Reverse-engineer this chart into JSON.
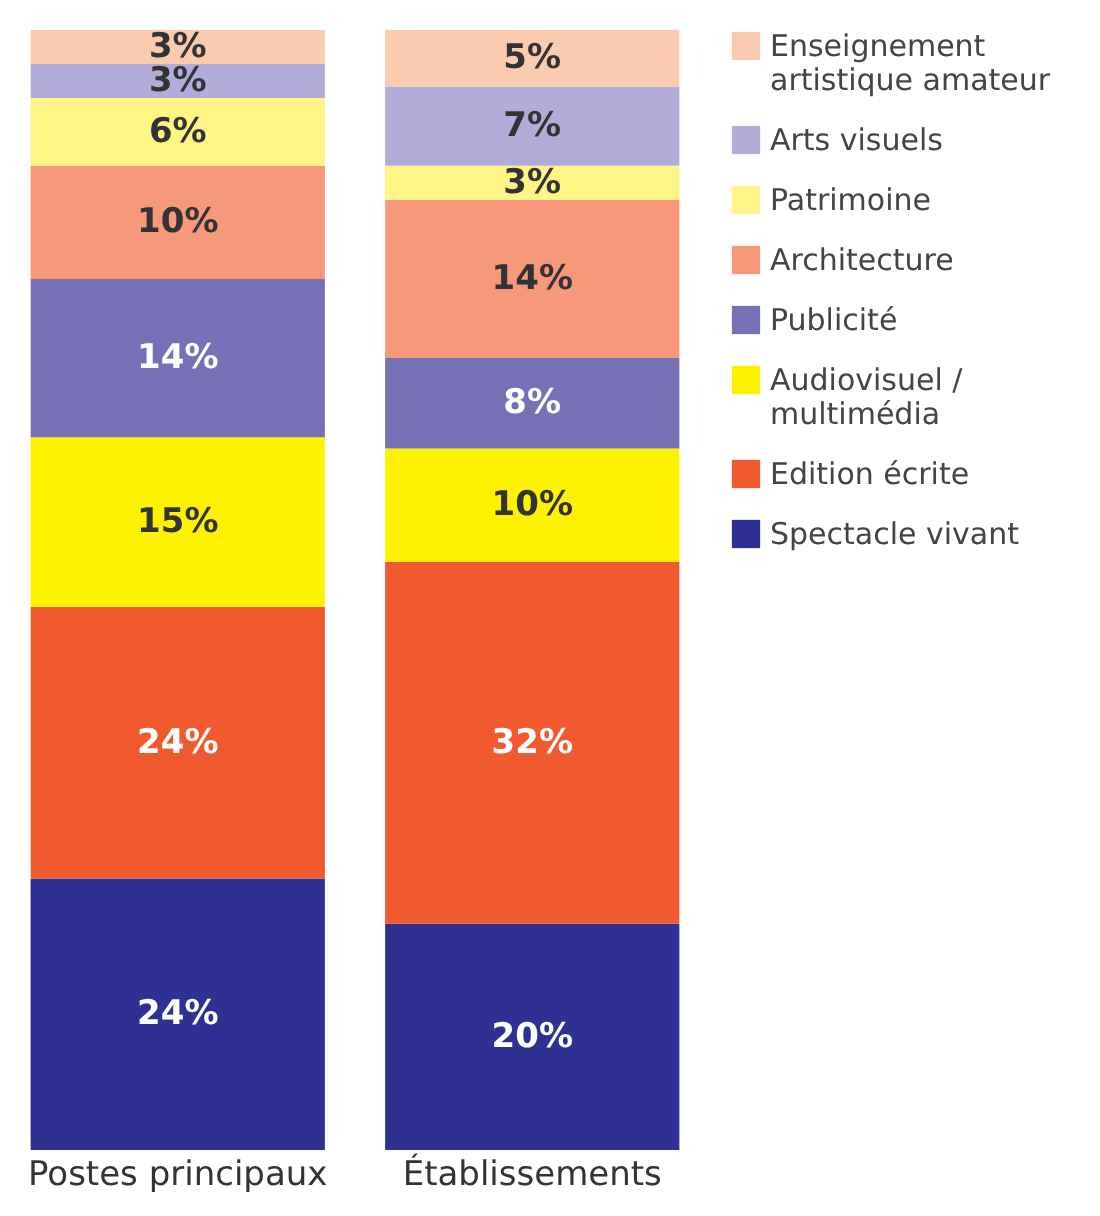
{
  "chart_data": {
    "type": "bar",
    "stacked": true,
    "categories": [
      "Postes principaux",
      "Établissements"
    ],
    "series": [
      {
        "name": "Spectacle vivant",
        "color": "#2e3192",
        "values": [
          24,
          20
        ],
        "value_labels": [
          "24%",
          "20%"
        ]
      },
      {
        "name": "Edition écrite",
        "color": "#f15a2f",
        "values": [
          24,
          32
        ],
        "value_labels": [
          "24%",
          "32%"
        ]
      },
      {
        "name": "Audiovisuel /\nmultimédia",
        "color": "#fff200",
        "values": [
          15,
          10
        ],
        "value_labels": [
          "15%",
          "10%"
        ]
      },
      {
        "name": "Publicité",
        "color": "#7670b6",
        "values": [
          14,
          8
        ],
        "value_labels": [
          "14%",
          "8%"
        ]
      },
      {
        "name": "Architecture",
        "color": "#f5997a",
        "values": [
          10,
          14
        ],
        "value_labels": [
          "10%",
          "14%"
        ]
      },
      {
        "name": "Patrimoine",
        "color": "#fff584",
        "values": [
          6,
          3
        ],
        "value_labels": [
          "6%",
          "3%"
        ]
      },
      {
        "name": "Arts visuels",
        "color": "#b1acd8",
        "values": [
          3,
          7
        ],
        "value_labels": [
          "3%",
          "7%"
        ]
      },
      {
        "name": "Enseignement\nartistique amateur",
        "color": "#fbcbb0",
        "values": [
          3,
          5
        ],
        "value_labels": [
          "3%",
          "5%"
        ]
      }
    ],
    "legend": "right"
  }
}
